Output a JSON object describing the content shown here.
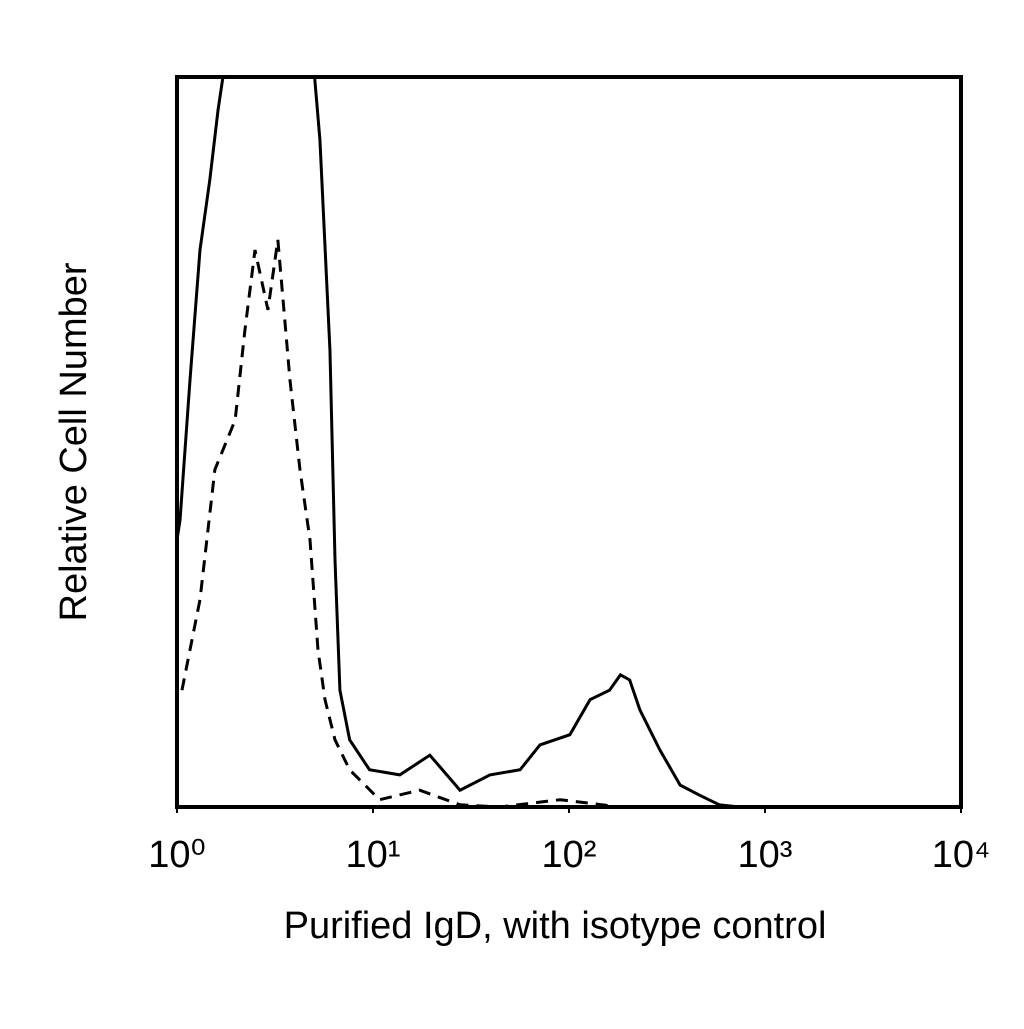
{
  "chart_data": {
    "type": "line",
    "xlabel": "Purified IgD, with isotype control",
    "ylabel": "Relative Cell Number",
    "xscale": "log",
    "xlim": [
      1,
      10000
    ],
    "xticks": [
      {
        "value": 1,
        "label": "10⁰"
      },
      {
        "value": 10,
        "label": "10¹"
      },
      {
        "value": 100,
        "label": "10²"
      },
      {
        "value": 1000,
        "label": "10³"
      },
      {
        "value": 10000,
        "label": "10⁴"
      }
    ],
    "ylim": [
      0,
      100
    ],
    "series": [
      {
        "color": "#000000",
        "dashed": false,
        "x": [
          1,
          1.036,
          1.165,
          1.31,
          1.47,
          1.62,
          1.76,
          1.98,
          4.24,
          5.05,
          5.36,
          6.03,
          6.4,
          6.78,
          7.6,
          9.6,
          13.7,
          19.5,
          27.8,
          39.5,
          56.3,
          71.1,
          101,
          128,
          161,
          183,
          204,
          230,
          291,
          369,
          465,
          585,
          742
        ],
        "values": [
          36.6,
          39.3,
          58.5,
          76.3,
          85.9,
          95.5,
          102,
          120,
          120,
          99.6,
          91.4,
          62.6,
          33.8,
          16,
          9.2,
          5.1,
          4.4,
          7.1,
          2.3,
          4.4,
          5.1,
          8.5,
          9.9,
          14.7,
          16,
          18.1,
          17.4,
          13.3,
          7.8,
          3,
          1.6,
          0.3,
          0
        ]
      },
      {
        "color": "#000000",
        "dashed": true,
        "x": [
          1.06,
          1.31,
          1.56,
          1.98,
          2.22,
          2.5,
          2.91,
          3.27,
          3.77,
          4.24,
          4.77,
          5.24,
          5.69,
          6.4,
          7.6,
          10.8,
          17.3,
          27.8,
          44.4,
          90,
          183
        ],
        "values": [
          16,
          28.4,
          46.2,
          53,
          65.3,
          76.3,
          68.1,
          77.7,
          58.5,
          46.2,
          36.6,
          21.5,
          14.7,
          9.2,
          5.1,
          1,
          2.3,
          0.3,
          0,
          1,
          0
        ]
      }
    ]
  }
}
